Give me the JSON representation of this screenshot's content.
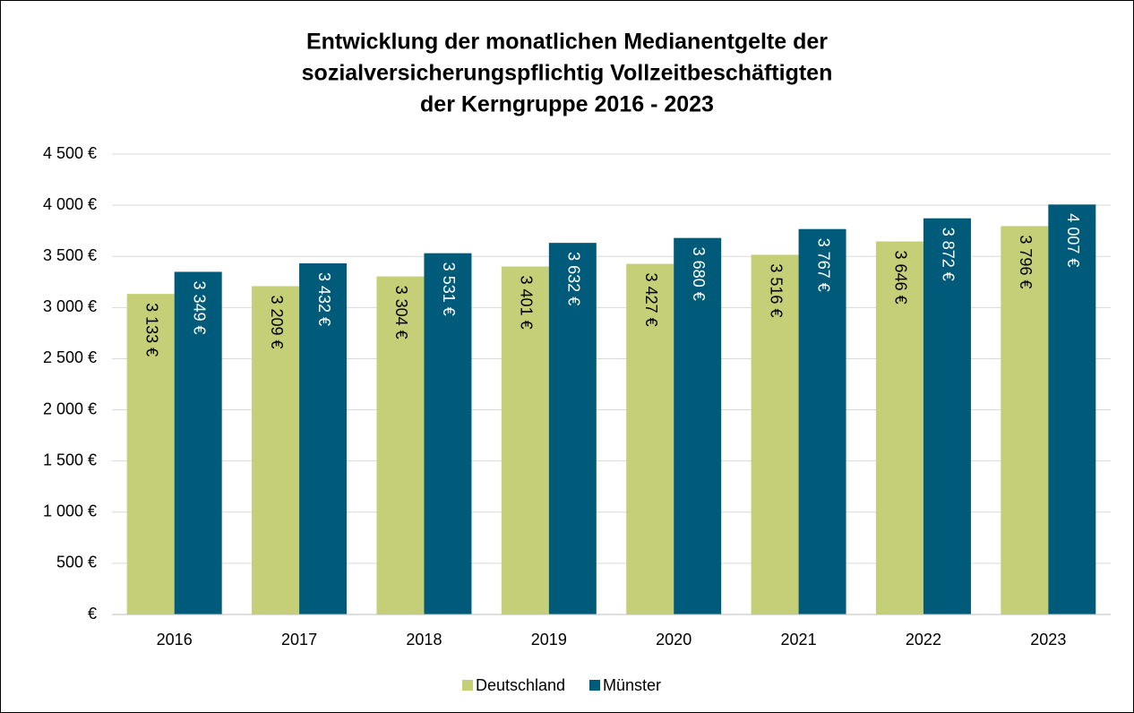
{
  "chart_data": {
    "type": "bar",
    "title": [
      "Entwicklung der monatlichen Medianentgelte der",
      "sozialversicherungspflichtig Vollzeitbeschäftigten",
      "der Kerngruppe 2016 - 2023"
    ],
    "categories": [
      "2016",
      "2017",
      "2018",
      "2019",
      "2020",
      "2021",
      "2022",
      "2023"
    ],
    "series": [
      {
        "name": "Deutschland",
        "color": "#c4cf77",
        "values": [
          3133,
          3209,
          3304,
          3401,
          3427,
          3516,
          3646,
          3796
        ],
        "value_labels": [
          "3 133 €",
          "3 209 €",
          "3 304 €",
          "3 401 €",
          "3 427 €",
          "3 516 €",
          "3 646 €",
          "3 796 €"
        ]
      },
      {
        "name": "Münster",
        "color": "#005b7a",
        "values": [
          3349,
          3432,
          3531,
          3632,
          3680,
          3767,
          3872,
          4007
        ],
        "value_labels": [
          "3 349 €",
          "3 432 €",
          "3 531 €",
          "3 632 €",
          "3 680 €",
          "3 767 €",
          "3 872 €",
          "4 007 €"
        ]
      }
    ],
    "ylim": [
      0,
      4500
    ],
    "yticks": [
      {
        "value": 0,
        "label": "€"
      },
      {
        "value": 500,
        "label": "500 €"
      },
      {
        "value": 1000,
        "label": "1 000 €"
      },
      {
        "value": 1500,
        "label": "1 500 €"
      },
      {
        "value": 2000,
        "label": "2 000 €"
      },
      {
        "value": 2500,
        "label": "2 500 €"
      },
      {
        "value": 3000,
        "label": "3 000 €"
      },
      {
        "value": 3500,
        "label": "3 500 €"
      },
      {
        "value": 4000,
        "label": "4 000 €"
      },
      {
        "value": 4500,
        "label": "4 500 €"
      }
    ],
    "grid": true,
    "legend": "bottom"
  }
}
